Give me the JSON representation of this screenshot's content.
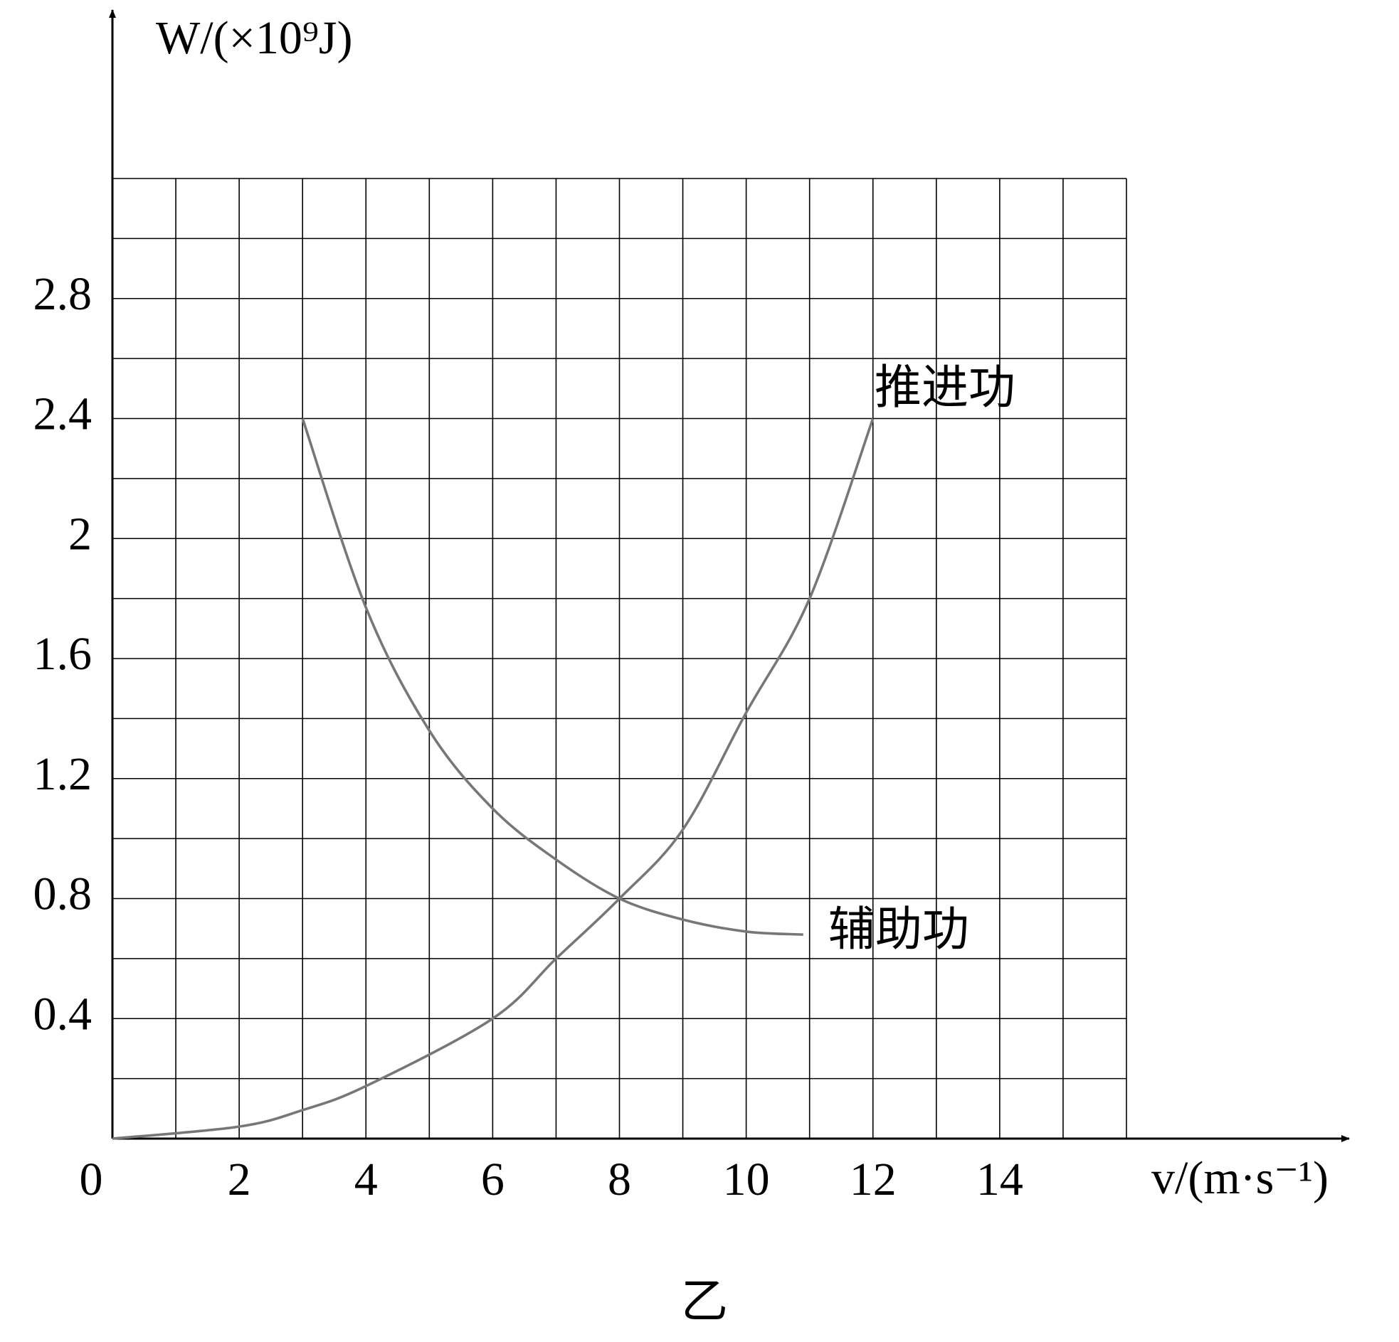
{
  "chart_data": {
    "type": "line",
    "y_label": "W/(×10⁹J)",
    "x_label": "v/(m·s⁻¹)",
    "caption": "乙",
    "xlim": [
      0,
      16
    ],
    "ylim": [
      0,
      3.2
    ],
    "xticks": [
      0,
      2,
      4,
      6,
      8,
      10,
      12,
      14
    ],
    "yticks": [
      0.4,
      0.8,
      1.2,
      1.6,
      2.0,
      2.4,
      2.8
    ],
    "x_gridlines": [
      1,
      2,
      3,
      4,
      5,
      6,
      7,
      8,
      9,
      10,
      11,
      12,
      13,
      14,
      15,
      16
    ],
    "y_gridlines": [
      0.2,
      0.4,
      0.6,
      0.8,
      1.0,
      1.2,
      1.4,
      1.6,
      1.8,
      2.0,
      2.2,
      2.4,
      2.6,
      2.8,
      3.0,
      3.2
    ],
    "series": [
      {
        "name": "推进功",
        "color": "#777777",
        "x": [
          0,
          2,
          3,
          4,
          6,
          7,
          8,
          9,
          10,
          11,
          12
        ],
        "values": [
          0,
          0.04,
          0.095,
          0.175,
          0.4,
          0.6,
          0.8,
          1.03,
          1.42,
          1.8,
          2.4
        ]
      },
      {
        "name": "辅助功",
        "color": "#777777",
        "x": [
          3,
          4,
          5,
          6,
          7,
          8,
          9,
          10,
          10.9
        ],
        "values": [
          2.4,
          1.77,
          1.36,
          1.1,
          0.93,
          0.8,
          0.73,
          0.69,
          0.68
        ]
      }
    ]
  }
}
